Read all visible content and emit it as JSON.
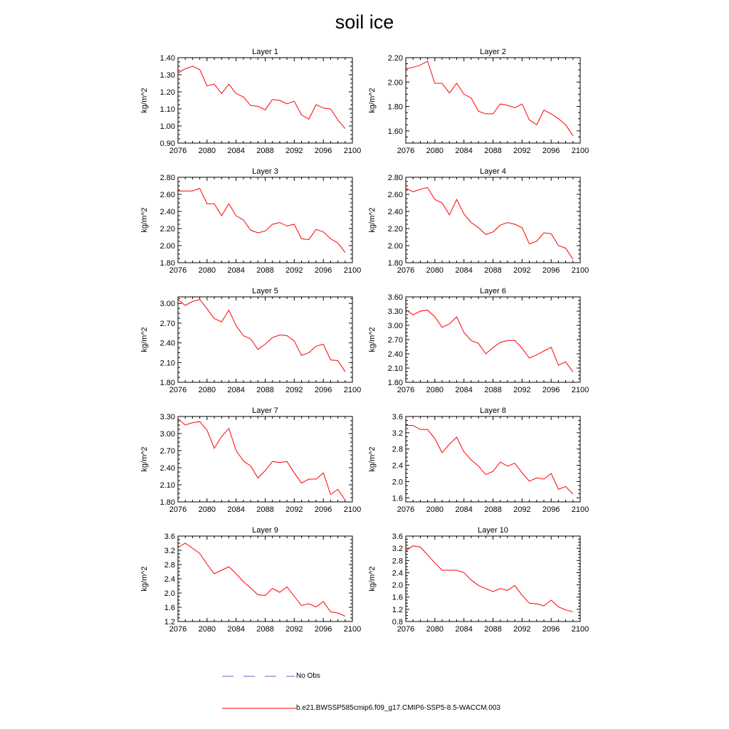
{
  "title": "soil ice",
  "ylabel": "kg/m^2",
  "xticks": [
    "2076",
    "2080",
    "2084",
    "2088",
    "2092",
    "2096",
    "2100"
  ],
  "legend": {
    "obs_label": "No Obs",
    "obs_color": "#6666cc",
    "model_label": "b.e21.BWSSP585cmip6.f09_g17.CMIP6-SSP5-8.5-WACCM.003",
    "model_color": "#ff0000"
  },
  "chart_data": [
    {
      "type": "line",
      "title": "Layer 1",
      "xlim": [
        2076,
        2100
      ],
      "ylim": [
        0.9,
        1.4
      ],
      "yticks": [
        "0.90",
        "1.00",
        "1.10",
        "1.20",
        "1.30",
        "1.40"
      ],
      "x": [
        2076,
        2077,
        2078,
        2079,
        2080,
        2081,
        2082,
        2083,
        2084,
        2085,
        2086,
        2087,
        2088,
        2089,
        2090,
        2091,
        2092,
        2093,
        2094,
        2095,
        2096,
        2097,
        2098,
        2099
      ],
      "values": [
        1.31,
        1.335,
        1.35,
        1.33,
        1.235,
        1.245,
        1.19,
        1.245,
        1.19,
        1.17,
        1.12,
        1.115,
        1.095,
        1.155,
        1.15,
        1.13,
        1.145,
        1.065,
        1.04,
        1.125,
        1.105,
        1.1,
        1.035,
        0.985
      ]
    },
    {
      "type": "line",
      "title": "Layer 2",
      "xlim": [
        2076,
        2100
      ],
      "ylim": [
        1.5,
        2.2
      ],
      "yticks": [
        "1.60",
        "1.80",
        "2.00",
        "2.20"
      ],
      "x": [
        2076,
        2077,
        2078,
        2079,
        2080,
        2081,
        2082,
        2083,
        2084,
        2085,
        2086,
        2087,
        2088,
        2089,
        2090,
        2091,
        2092,
        2093,
        2094,
        2095,
        2096,
        2097,
        2098,
        2099
      ],
      "values": [
        2.11,
        2.12,
        2.14,
        2.17,
        1.99,
        1.99,
        1.91,
        1.99,
        1.9,
        1.87,
        1.76,
        1.74,
        1.74,
        1.82,
        1.81,
        1.79,
        1.82,
        1.69,
        1.65,
        1.77,
        1.74,
        1.7,
        1.65,
        1.56
      ]
    },
    {
      "type": "line",
      "title": "Layer 3",
      "xlim": [
        2076,
        2100
      ],
      "ylim": [
        1.8,
        2.8
      ],
      "yticks": [
        "1.80",
        "2.00",
        "2.20",
        "2.40",
        "2.60",
        "2.80"
      ],
      "x": [
        2076,
        2077,
        2078,
        2079,
        2080,
        2081,
        2082,
        2083,
        2084,
        2085,
        2086,
        2087,
        2088,
        2089,
        2090,
        2091,
        2092,
        2093,
        2094,
        2095,
        2096,
        2097,
        2098,
        2099
      ],
      "values": [
        2.64,
        2.64,
        2.64,
        2.67,
        2.49,
        2.49,
        2.35,
        2.49,
        2.35,
        2.3,
        2.18,
        2.15,
        2.17,
        2.25,
        2.27,
        2.23,
        2.25,
        2.08,
        2.07,
        2.19,
        2.16,
        2.08,
        2.03,
        1.92
      ]
    },
    {
      "type": "line",
      "title": "Layer 4",
      "xlim": [
        2076,
        2100
      ],
      "ylim": [
        1.8,
        2.8
      ],
      "yticks": [
        "1.80",
        "2.00",
        "2.20",
        "2.40",
        "2.60",
        "2.80"
      ],
      "x": [
        2076,
        2077,
        2078,
        2079,
        2080,
        2081,
        2082,
        2083,
        2084,
        2085,
        2086,
        2087,
        2088,
        2089,
        2090,
        2091,
        2092,
        2093,
        2094,
        2095,
        2096,
        2097,
        2098,
        2099
      ],
      "values": [
        2.67,
        2.63,
        2.66,
        2.68,
        2.54,
        2.5,
        2.36,
        2.54,
        2.37,
        2.27,
        2.21,
        2.13,
        2.16,
        2.24,
        2.27,
        2.25,
        2.21,
        2.02,
        2.05,
        2.15,
        2.14,
        2.0,
        1.97,
        1.84
      ]
    },
    {
      "type": "line",
      "title": "Layer 5",
      "xlim": [
        2076,
        2100
      ],
      "ylim": [
        1.8,
        3.1
      ],
      "yticks": [
        "1.80",
        "2.10",
        "2.40",
        "2.70",
        "3.00"
      ],
      "x": [
        2076,
        2077,
        2078,
        2079,
        2080,
        2081,
        2082,
        2083,
        2084,
        2085,
        2086,
        2087,
        2088,
        2089,
        2090,
        2091,
        2092,
        2093,
        2094,
        2095,
        2096,
        2097,
        2098,
        2099
      ],
      "values": [
        3.06,
        2.97,
        3.03,
        3.06,
        2.92,
        2.77,
        2.72,
        2.9,
        2.66,
        2.51,
        2.46,
        2.3,
        2.38,
        2.48,
        2.52,
        2.51,
        2.43,
        2.21,
        2.25,
        2.35,
        2.38,
        2.14,
        2.13,
        1.96
      ]
    },
    {
      "type": "line",
      "title": "Layer 6",
      "xlim": [
        2076,
        2100
      ],
      "ylim": [
        1.8,
        3.6
      ],
      "yticks": [
        "1.80",
        "2.10",
        "2.40",
        "2.70",
        "3.00",
        "3.30",
        "3.60"
      ],
      "x": [
        2076,
        2077,
        2078,
        2079,
        2080,
        2081,
        2082,
        2083,
        2084,
        2085,
        2086,
        2087,
        2088,
        2089,
        2090,
        2091,
        2092,
        2093,
        2094,
        2095,
        2096,
        2097,
        2098,
        2099
      ],
      "values": [
        3.33,
        3.22,
        3.3,
        3.32,
        3.18,
        2.96,
        3.03,
        3.18,
        2.85,
        2.68,
        2.62,
        2.4,
        2.53,
        2.64,
        2.68,
        2.68,
        2.52,
        2.31,
        2.38,
        2.46,
        2.54,
        2.16,
        2.23,
        2.02
      ]
    },
    {
      "type": "line",
      "title": "Layer 7",
      "xlim": [
        2076,
        2100
      ],
      "ylim": [
        1.8,
        3.3
      ],
      "yticks": [
        "1.80",
        "2.10",
        "2.40",
        "2.70",
        "3.00",
        "3.30"
      ],
      "x": [
        2076,
        2077,
        2078,
        2079,
        2080,
        2081,
        2082,
        2083,
        2084,
        2085,
        2086,
        2087,
        2088,
        2089,
        2090,
        2091,
        2092,
        2093,
        2094,
        2095,
        2096,
        2097,
        2098,
        2099
      ],
      "values": [
        3.26,
        3.15,
        3.19,
        3.21,
        3.06,
        2.74,
        2.95,
        3.09,
        2.7,
        2.52,
        2.43,
        2.22,
        2.35,
        2.51,
        2.49,
        2.51,
        2.31,
        2.13,
        2.2,
        2.2,
        2.31,
        1.93,
        2.02,
        1.83
      ]
    },
    {
      "type": "line",
      "title": "Layer 8",
      "xlim": [
        2076,
        2100
      ],
      "ylim": [
        1.5,
        3.6
      ],
      "yticks": [
        "1.6",
        "2.0",
        "2.4",
        "2.8",
        "3.2",
        "3.6"
      ],
      "x": [
        2076,
        2077,
        2078,
        2079,
        2080,
        2081,
        2082,
        2083,
        2084,
        2085,
        2086,
        2087,
        2088,
        2089,
        2090,
        2091,
        2092,
        2093,
        2094,
        2095,
        2096,
        2097,
        2098,
        2099
      ],
      "values": [
        3.38,
        3.38,
        3.28,
        3.28,
        3.06,
        2.71,
        2.92,
        3.09,
        2.73,
        2.53,
        2.38,
        2.17,
        2.25,
        2.48,
        2.38,
        2.45,
        2.22,
        2.01,
        2.09,
        2.06,
        2.2,
        1.81,
        1.88,
        1.69
      ]
    },
    {
      "type": "line",
      "title": "Layer 9",
      "xlim": [
        2076,
        2100
      ],
      "ylim": [
        1.2,
        3.6
      ],
      "yticks": [
        "1.2",
        "1.6",
        "2.0",
        "2.4",
        "2.8",
        "3.2",
        "3.6"
      ],
      "x": [
        2076,
        2077,
        2078,
        2079,
        2080,
        2081,
        2082,
        2083,
        2084,
        2085,
        2086,
        2087,
        2088,
        2089,
        2090,
        2091,
        2092,
        2093,
        2094,
        2095,
        2096,
        2097,
        2098,
        2099
      ],
      "values": [
        3.28,
        3.4,
        3.26,
        3.11,
        2.81,
        2.54,
        2.64,
        2.74,
        2.54,
        2.32,
        2.14,
        1.95,
        1.93,
        2.13,
        2.02,
        2.17,
        1.91,
        1.65,
        1.7,
        1.61,
        1.76,
        1.47,
        1.44,
        1.35
      ]
    },
    {
      "type": "line",
      "title": "Layer 10",
      "xlim": [
        2076,
        2100
      ],
      "ylim": [
        0.8,
        3.6
      ],
      "yticks": [
        "0.8",
        "1.2",
        "1.6",
        "2.0",
        "2.4",
        "2.8",
        "3.2",
        "3.6"
      ],
      "x": [
        2076,
        2077,
        2078,
        2079,
        2080,
        2081,
        2082,
        2083,
        2084,
        2085,
        2086,
        2087,
        2088,
        2089,
        2090,
        2091,
        2092,
        2093,
        2094,
        2095,
        2096,
        2097,
        2098,
        2099
      ],
      "values": [
        3.12,
        3.28,
        3.24,
        2.98,
        2.72,
        2.48,
        2.48,
        2.48,
        2.4,
        2.16,
        1.98,
        1.88,
        1.78,
        1.88,
        1.82,
        1.98,
        1.66,
        1.4,
        1.38,
        1.31,
        1.5,
        1.28,
        1.18,
        1.12
      ]
    }
  ]
}
